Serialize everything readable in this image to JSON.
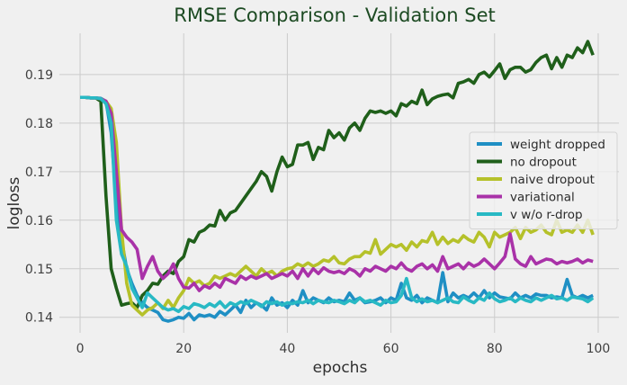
{
  "chart_data": {
    "type": "line",
    "title": "RMSE Comparison - Validation Set",
    "xlabel": "epochs",
    "ylabel": "logloss",
    "xlim": [
      -4,
      104
    ],
    "ylim": [
      0.1368,
      0.1985
    ],
    "xticks": [
      0,
      20,
      40,
      60,
      80,
      100
    ],
    "yticks": [
      0.14,
      0.15,
      0.16,
      0.17,
      0.18,
      0.19
    ],
    "ytick_labels": [
      "0.14",
      "0.15",
      "0.16",
      "0.17",
      "0.18",
      "0.19"
    ],
    "grid": true,
    "legend_position": "right",
    "x": [
      0,
      1,
      2,
      3,
      4,
      5,
      6,
      7,
      8,
      9,
      10,
      11,
      12,
      13,
      14,
      15,
      16,
      17,
      18,
      19,
      20,
      21,
      22,
      23,
      24,
      25,
      26,
      27,
      28,
      29,
      30,
      31,
      32,
      33,
      34,
      35,
      36,
      37,
      38,
      39,
      40,
      41,
      42,
      43,
      44,
      45,
      46,
      47,
      48,
      49,
      50,
      51,
      52,
      53,
      54,
      55,
      56,
      57,
      58,
      59,
      60,
      61,
      62,
      63,
      64,
      65,
      66,
      67,
      68,
      69,
      70,
      71,
      72,
      73,
      74,
      75,
      76,
      77,
      78,
      79,
      80,
      81,
      82,
      83,
      84,
      85,
      86,
      87,
      88,
      89,
      90,
      91,
      92,
      93,
      94,
      95,
      96,
      97,
      98,
      99
    ],
    "series": [
      {
        "name": "weight dropped",
        "color": "#1f8fc4",
        "values": [
          0.1853,
          0.1853,
          0.1852,
          0.1852,
          0.1851,
          0.1845,
          0.178,
          0.164,
          0.156,
          0.15,
          0.147,
          0.1445,
          0.143,
          0.142,
          0.1415,
          0.141,
          0.1395,
          0.1392,
          0.1395,
          0.14,
          0.1398,
          0.1408,
          0.1395,
          0.1405,
          0.1402,
          0.1405,
          0.14,
          0.1412,
          0.1405,
          0.1415,
          0.1425,
          0.141,
          0.1435,
          0.142,
          0.143,
          0.1425,
          0.1415,
          0.144,
          0.1425,
          0.143,
          0.142,
          0.1435,
          0.1425,
          0.1455,
          0.143,
          0.144,
          0.1435,
          0.143,
          0.144,
          0.1432,
          0.1435,
          0.1432,
          0.145,
          0.1435,
          0.144,
          0.143,
          0.1432,
          0.1435,
          0.144,
          0.143,
          0.144,
          0.1435,
          0.147,
          0.144,
          0.1435,
          0.1445,
          0.143,
          0.144,
          0.1435,
          0.143,
          0.1492,
          0.1432,
          0.145,
          0.144,
          0.1445,
          0.144,
          0.145,
          0.144,
          0.1455,
          0.144,
          0.145,
          0.1442,
          0.144,
          0.1438,
          0.145,
          0.144,
          0.1445,
          0.144,
          0.1448,
          0.1445,
          0.1445,
          0.144,
          0.1442,
          0.144,
          0.1478,
          0.1445,
          0.144,
          0.1445,
          0.144,
          0.1445
        ]
      },
      {
        "name": "no dropout",
        "color": "#1f5f1a",
        "values": [
          0.1853,
          0.1853,
          0.1852,
          0.1852,
          0.1845,
          0.165,
          0.15,
          0.146,
          0.1425,
          0.1428,
          0.143,
          0.142,
          0.1445,
          0.1455,
          0.147,
          0.1468,
          0.1485,
          0.1495,
          0.149,
          0.1515,
          0.1525,
          0.156,
          0.1555,
          0.1575,
          0.158,
          0.159,
          0.1588,
          0.162,
          0.16,
          0.1615,
          0.162,
          0.1635,
          0.165,
          0.1665,
          0.168,
          0.17,
          0.169,
          0.166,
          0.17,
          0.173,
          0.171,
          0.1715,
          0.1755,
          0.1755,
          0.176,
          0.1725,
          0.175,
          0.1745,
          0.1785,
          0.177,
          0.178,
          0.1765,
          0.179,
          0.18,
          0.1785,
          0.181,
          0.1825,
          0.1822,
          0.1825,
          0.182,
          0.1825,
          0.1815,
          0.184,
          0.1835,
          0.1845,
          0.184,
          0.1868,
          0.1838,
          0.185,
          0.1855,
          0.1858,
          0.186,
          0.1852,
          0.1882,
          0.1885,
          0.189,
          0.1882,
          0.19,
          0.1905,
          0.1895,
          0.1908,
          0.1922,
          0.1892,
          0.191,
          0.1915,
          0.1915,
          0.1905,
          0.191,
          0.1925,
          0.1935,
          0.194,
          0.1912,
          0.1935,
          0.1915,
          0.194,
          0.1935,
          0.1955,
          0.1945,
          0.1968,
          0.194
        ]
      },
      {
        "name": "naive dropout",
        "color": "#b5c12a",
        "values": [
          0.1853,
          0.1853,
          0.1852,
          0.1852,
          0.185,
          0.1845,
          0.183,
          0.176,
          0.158,
          0.147,
          0.1425,
          0.1415,
          0.1405,
          0.1415,
          0.142,
          0.143,
          0.1418,
          0.1435,
          0.142,
          0.144,
          0.1455,
          0.148,
          0.147,
          0.1475,
          0.1465,
          0.147,
          0.1485,
          0.148,
          0.1485,
          0.149,
          0.1485,
          0.1495,
          0.1505,
          0.1495,
          0.1485,
          0.15,
          0.149,
          0.1495,
          0.1485,
          0.1495,
          0.15,
          0.1502,
          0.151,
          0.1505,
          0.1512,
          0.1505,
          0.151,
          0.1518,
          0.1515,
          0.1525,
          0.1512,
          0.151,
          0.152,
          0.1525,
          0.1525,
          0.1535,
          0.1532,
          0.156,
          0.153,
          0.154,
          0.155,
          0.1545,
          0.155,
          0.1538,
          0.1555,
          0.1545,
          0.1558,
          0.1555,
          0.1575,
          0.155,
          0.1565,
          0.1552,
          0.156,
          0.1555,
          0.1568,
          0.156,
          0.1555,
          0.1575,
          0.1565,
          0.1545,
          0.1575,
          0.1565,
          0.157,
          0.1575,
          0.1585,
          0.1562,
          0.1585,
          0.1575,
          0.158,
          0.159,
          0.1575,
          0.157,
          0.16,
          0.1575,
          0.158,
          0.1575,
          0.159,
          0.1575,
          0.16,
          0.157
        ]
      },
      {
        "name": "variational",
        "color": "#a932a8",
        "values": [
          0.1853,
          0.1853,
          0.1852,
          0.1852,
          0.185,
          0.1845,
          0.182,
          0.17,
          0.158,
          0.1565,
          0.1555,
          0.154,
          0.148,
          0.1505,
          0.1525,
          0.1495,
          0.148,
          0.149,
          0.151,
          0.148,
          0.1462,
          0.146,
          0.147,
          0.1455,
          0.1465,
          0.146,
          0.147,
          0.1462,
          0.148,
          0.1475,
          0.147,
          0.1485,
          0.1478,
          0.1485,
          0.148,
          0.1485,
          0.149,
          0.148,
          0.1485,
          0.149,
          0.1485,
          0.1495,
          0.148,
          0.15,
          0.1485,
          0.15,
          0.149,
          0.1502,
          0.1495,
          0.1492,
          0.1495,
          0.149,
          0.15,
          0.1495,
          0.1485,
          0.15,
          0.1495,
          0.1505,
          0.15,
          0.1495,
          0.1505,
          0.15,
          0.1512,
          0.15,
          0.1495,
          0.1505,
          0.151,
          0.15,
          0.1508,
          0.1495,
          0.1525,
          0.15,
          0.1505,
          0.151,
          0.15,
          0.1512,
          0.1505,
          0.151,
          0.152,
          0.151,
          0.15,
          0.1512,
          0.1525,
          0.1572,
          0.152,
          0.151,
          0.1505,
          0.1525,
          0.151,
          0.1515,
          0.152,
          0.1518,
          0.151,
          0.1515,
          0.1512,
          0.1515,
          0.152,
          0.1512,
          0.1518,
          0.1515
        ]
      },
      {
        "name": "v w/o r-drop",
        "color": "#28b9c4",
        "values": [
          0.1853,
          0.1853,
          0.1852,
          0.1852,
          0.185,
          0.184,
          0.18,
          0.16,
          0.153,
          0.1505,
          0.146,
          0.144,
          0.142,
          0.145,
          0.144,
          0.143,
          0.142,
          0.1415,
          0.1418,
          0.1412,
          0.1422,
          0.1418,
          0.1428,
          0.1425,
          0.142,
          0.1428,
          0.1422,
          0.1432,
          0.142,
          0.143,
          0.1425,
          0.1432,
          0.1428,
          0.1435,
          0.143,
          0.1422,
          0.1432,
          0.1428,
          0.1432,
          0.1425,
          0.143,
          0.1428,
          0.1432,
          0.143,
          0.1435,
          0.1428,
          0.1435,
          0.1432,
          0.143,
          0.1435,
          0.1432,
          0.1428,
          0.1435,
          0.143,
          0.144,
          0.1432,
          0.1435,
          0.143,
          0.1425,
          0.1435,
          0.143,
          0.1432,
          0.1445,
          0.148,
          0.144,
          0.1432,
          0.1438,
          0.1432,
          0.1435,
          0.143,
          0.1435,
          0.144,
          0.1432,
          0.143,
          0.1442,
          0.1435,
          0.143,
          0.144,
          0.1435,
          0.145,
          0.1438,
          0.1432,
          0.1435,
          0.144,
          0.1432,
          0.144,
          0.1435,
          0.1432,
          0.144,
          0.1435,
          0.144,
          0.1445,
          0.1438,
          0.144,
          0.1435,
          0.1442,
          0.144,
          0.1438,
          0.1432,
          0.144
        ]
      }
    ]
  }
}
